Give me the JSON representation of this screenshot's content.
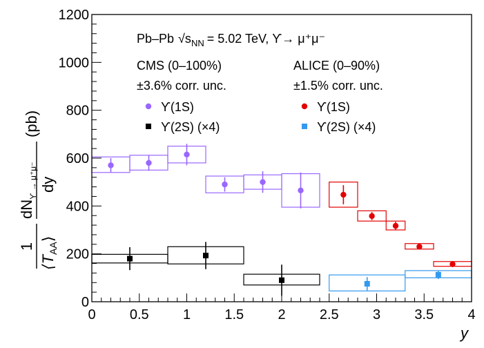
{
  "chart_data": {
    "type": "scatter",
    "xlabel": "y",
    "ylabel": {
      "numerator": "dN",
      "numerator_sub": "ϒ → μ⁺μ⁻",
      "denominator": "dy",
      "unit": "(pb)",
      "prefactor_num": "1",
      "prefactor_den": "⟨T",
      "prefactor_den_sub": "AA",
      "prefactor_den_close": "⟩"
    },
    "xlim": [
      0,
      4
    ],
    "ylim": [
      0,
      1200
    ],
    "x_ticks": [
      "0",
      "0.5",
      "1",
      "1.5",
      "2",
      "2.5",
      "3",
      "3.5",
      "4"
    ],
    "y_ticks": [
      "0",
      "200",
      "400",
      "600",
      "800",
      "1000",
      "1200"
    ],
    "annotation": {
      "system": "Pb–Pb",
      "energy_prefix": "√s",
      "energy_sub": "NN",
      "energy_value": "= 5.02 TeV, ϒ→ μ⁺μ⁻"
    },
    "groups": [
      {
        "label": "CMS (0–100%)",
        "unc": "±3.6% corr. unc."
      },
      {
        "label": "ALICE (0–90%)",
        "unc": "±1.5% corr. unc."
      }
    ],
    "colors": {
      "cms_1s": "#9966ff",
      "cms_2s": "#000000",
      "alice_1s": "#e30000",
      "alice_2s": "#3399ee"
    },
    "series": [
      {
        "name": "ϒ(1S)",
        "experiment": "CMS",
        "color_key": "cms_1s",
        "marker": "circle",
        "points": [
          {
            "x": 0.2,
            "y": 570,
            "stat": 30,
            "xlo": 0.0,
            "xhi": 0.4,
            "syslo": 540,
            "syshi": 605
          },
          {
            "x": 0.6,
            "y": 580,
            "stat": 33,
            "xlo": 0.4,
            "xhi": 0.8,
            "syslo": 550,
            "syshi": 612
          },
          {
            "x": 1.0,
            "y": 615,
            "stat": 45,
            "xlo": 0.8,
            "xhi": 1.2,
            "syslo": 580,
            "syshi": 650
          },
          {
            "x": 1.4,
            "y": 490,
            "stat": 30,
            "xlo": 1.2,
            "xhi": 1.6,
            "syslo": 455,
            "syshi": 525
          },
          {
            "x": 1.8,
            "y": 500,
            "stat": 45,
            "xlo": 1.6,
            "xhi": 2.0,
            "syslo": 470,
            "syshi": 530
          },
          {
            "x": 2.2,
            "y": 465,
            "stat": 75,
            "xlo": 2.0,
            "xhi": 2.4,
            "syslo": 395,
            "syshi": 535
          }
        ]
      },
      {
        "name": "ϒ(2S) (×4)",
        "experiment": "CMS",
        "color_key": "cms_2s",
        "marker": "square",
        "points": [
          {
            "x": 0.4,
            "y": 180,
            "stat": 48,
            "xlo": 0.0,
            "xhi": 0.8,
            "syslo": 162,
            "syshi": 198
          },
          {
            "x": 1.2,
            "y": 193,
            "stat": 57,
            "xlo": 0.8,
            "xhi": 1.6,
            "syslo": 158,
            "syshi": 230
          },
          {
            "x": 2.0,
            "y": 90,
            "stat": 65,
            "xlo": 1.6,
            "xhi": 2.4,
            "syslo": 70,
            "syshi": 115
          }
        ]
      },
      {
        "name": "ϒ(1S)",
        "experiment": "ALICE",
        "color_key": "alice_1s",
        "marker": "circle",
        "points": [
          {
            "x": 2.65,
            "y": 447,
            "stat": 40,
            "xlo": 2.5,
            "xhi": 2.8,
            "syslo": 395,
            "syshi": 500
          },
          {
            "x": 2.95,
            "y": 358,
            "stat": 17,
            "xlo": 2.8,
            "xhi": 3.1,
            "syslo": 337,
            "syshi": 380
          },
          {
            "x": 3.2,
            "y": 317,
            "stat": 17,
            "xlo": 3.1,
            "xhi": 3.3,
            "syslo": 300,
            "syshi": 337
          },
          {
            "x": 3.45,
            "y": 230,
            "stat": 8,
            "xlo": 3.3,
            "xhi": 3.6,
            "syslo": 220,
            "syshi": 243
          },
          {
            "x": 3.8,
            "y": 157,
            "stat": 12,
            "xlo": 3.6,
            "xhi": 4.0,
            "syslo": 148,
            "syshi": 168
          }
        ]
      },
      {
        "name": "ϒ(2S) (×4)",
        "experiment": "ALICE",
        "color_key": "alice_2s",
        "marker": "square",
        "points": [
          {
            "x": 2.9,
            "y": 75,
            "stat": 28,
            "xlo": 2.5,
            "xhi": 3.3,
            "syslo": 45,
            "syshi": 112
          },
          {
            "x": 3.65,
            "y": 113,
            "stat": 18,
            "xlo": 3.3,
            "xhi": 4.0,
            "syslo": 100,
            "syshi": 130
          }
        ]
      }
    ]
  }
}
